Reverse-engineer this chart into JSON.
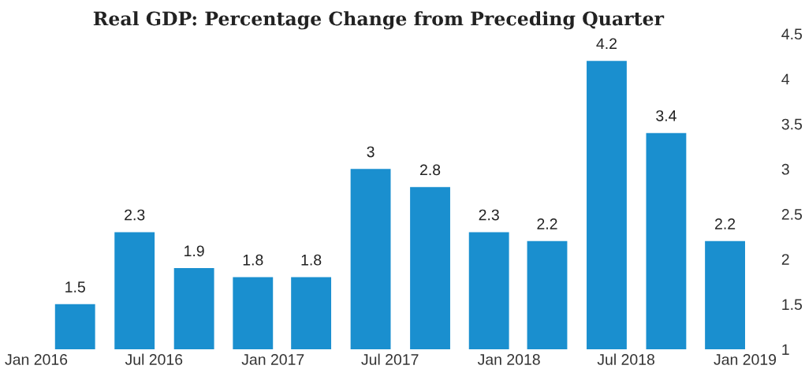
{
  "chart_data": {
    "type": "bar",
    "title": "Real GDP: Percentage Change from Preceding Quarter",
    "x": [
      "2016-03",
      "2016-06",
      "2016-09",
      "2016-12",
      "2017-03",
      "2017-06",
      "2017-09",
      "2017-12",
      "2018-03",
      "2018-06",
      "2018-09",
      "2018-12"
    ],
    "values": [
      1.5,
      2.3,
      1.9,
      1.8,
      1.8,
      3,
      2.8,
      2.3,
      2.2,
      4.2,
      3.4,
      2.2
    ],
    "color": "#1a8fcf",
    "xlim": [
      "2016-01",
      "2019-01"
    ],
    "xticks": [
      {
        "value": "2016-01",
        "label": "Jan 2016"
      },
      {
        "value": "2016-07",
        "label": "Jul 2016"
      },
      {
        "value": "2017-01",
        "label": "Jan 2017"
      },
      {
        "value": "2017-07",
        "label": "Jul 2017"
      },
      {
        "value": "2018-01",
        "label": "Jan 2018"
      },
      {
        "value": "2018-07",
        "label": "Jul 2018"
      },
      {
        "value": "2019-01",
        "label": "Jan 2019"
      }
    ],
    "ylim": [
      1,
      4.5
    ],
    "yticks": [
      1,
      1.5,
      2,
      2.5,
      3,
      3.5,
      4,
      4.5
    ],
    "data_labels": true,
    "grid": false,
    "legend": false
  }
}
